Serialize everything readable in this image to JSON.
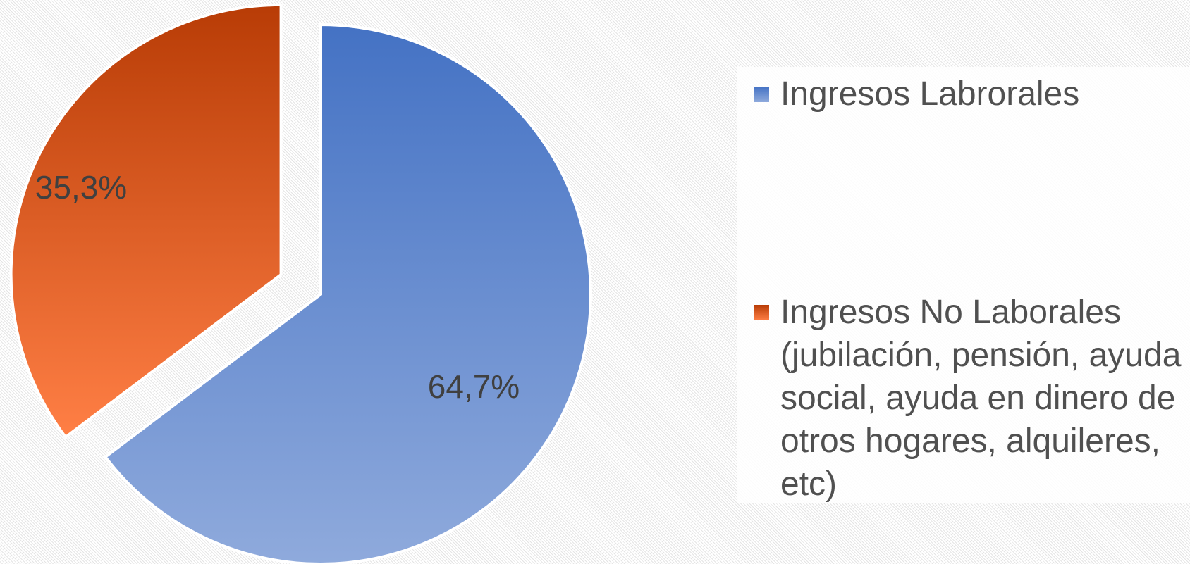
{
  "chart_data": {
    "type": "pie",
    "labels": [
      "Ingresos Labrorales",
      "Ingresos No Laborales (jubilación, pensión, ayuda social, ayuda en dinero de otros hogares, alquileres, etc)"
    ],
    "values": [
      64.7,
      35.3
    ],
    "value_labels": [
      "64,7%",
      "35,3%"
    ],
    "colors": [
      "#4472c4",
      "#b83c06"
    ],
    "exploded": [
      false,
      true
    ],
    "legend": "right"
  }
}
